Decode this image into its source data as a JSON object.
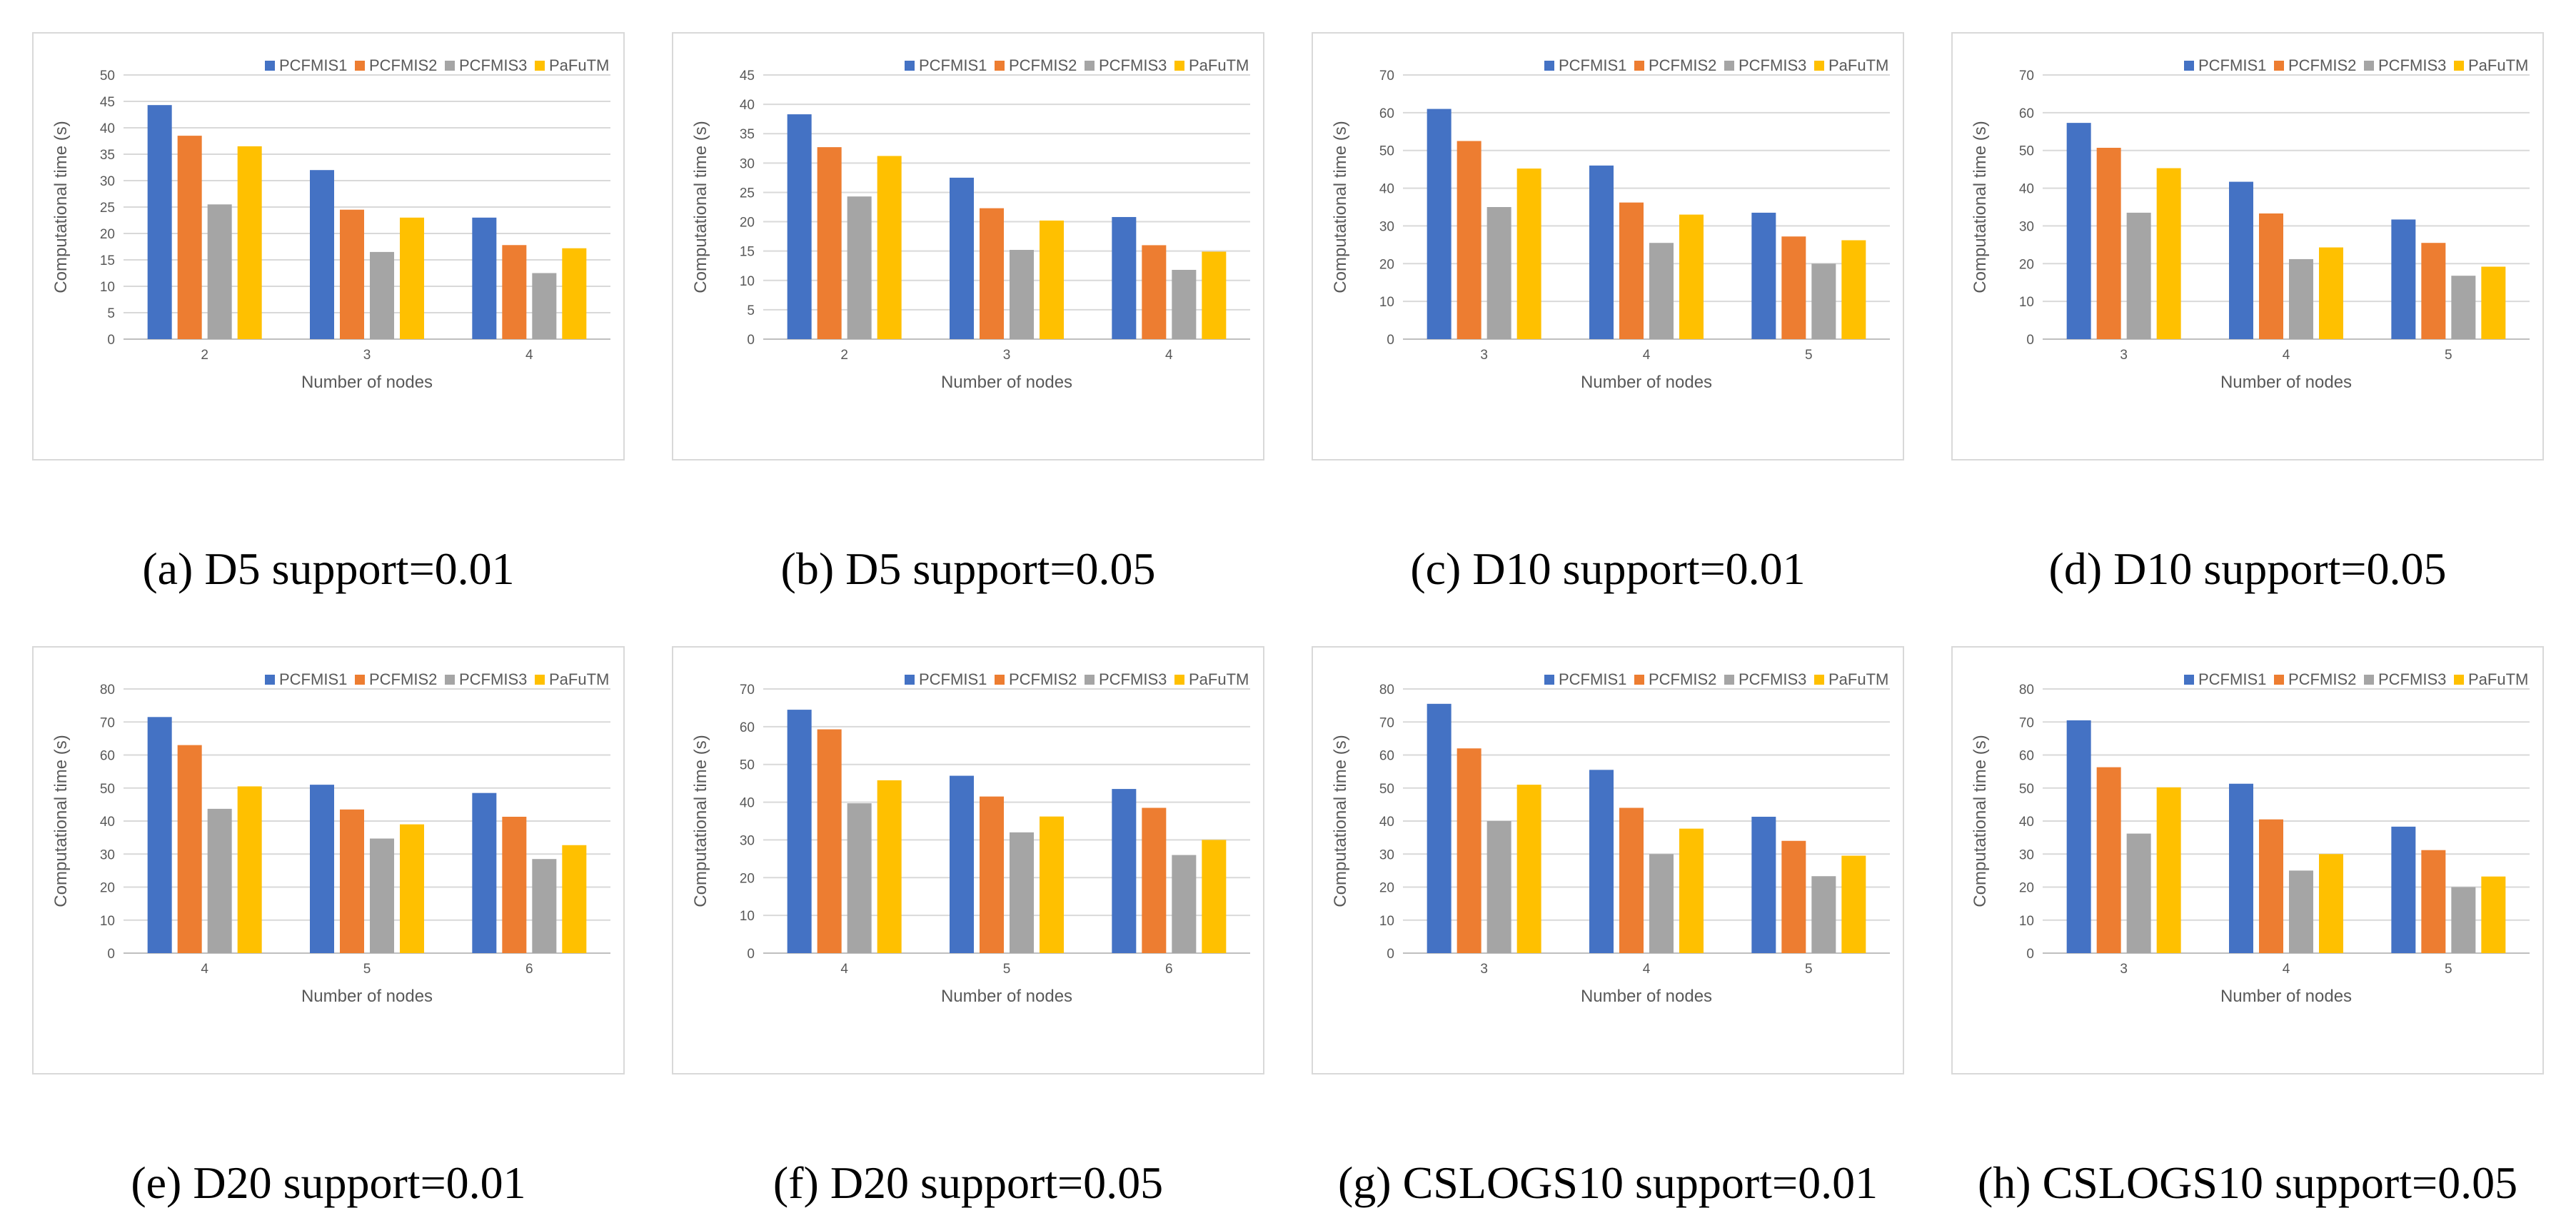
{
  "series_names": [
    "PCFMIS1",
    "PCFMIS2",
    "PCFMIS3",
    "PaFuTM"
  ],
  "series_colors": [
    "#4472c4",
    "#ed7d31",
    "#a5a5a5",
    "#ffc000"
  ],
  "charts": [
    {
      "caption": "(a) D5 support=0.01",
      "chart_data": {
        "type": "bar",
        "categories": [
          "2",
          "3",
          "4"
        ],
        "xlabel": "Number of nodes",
        "ylabel": "Computational time (s)",
        "ylim": [
          0,
          50
        ],
        "ystep": 5,
        "legend": "top-right",
        "grid": true,
        "series": [
          {
            "name": "PCFMIS1",
            "values": [
              44.3,
              32,
              23
            ]
          },
          {
            "name": "PCFMIS2",
            "values": [
              38.5,
              24.5,
              17.8
            ]
          },
          {
            "name": "PCFMIS3",
            "values": [
              25.5,
              16.5,
              12.5
            ]
          },
          {
            "name": "PaFuTM",
            "values": [
              36.5,
              23,
              17.2
            ]
          }
        ]
      }
    },
    {
      "caption": "(b) D5 support=0.05",
      "chart_data": {
        "type": "bar",
        "categories": [
          "2",
          "3",
          "4"
        ],
        "xlabel": "Number of nodes",
        "ylabel": "Computational time (s)",
        "ylim": [
          0,
          45
        ],
        "ystep": 5,
        "legend": "top-right",
        "grid": true,
        "series": [
          {
            "name": "PCFMIS1",
            "values": [
              38.3,
              27.5,
              20.8
            ]
          },
          {
            "name": "PCFMIS2",
            "values": [
              32.7,
              22.3,
              16
            ]
          },
          {
            "name": "PCFMIS3",
            "values": [
              24.3,
              15.2,
              11.8
            ]
          },
          {
            "name": "PaFuTM",
            "values": [
              31.2,
              20.2,
              14.9
            ]
          }
        ]
      }
    },
    {
      "caption": "(c) D10 support=0.01",
      "chart_data": {
        "type": "bar",
        "categories": [
          "3",
          "4",
          "5"
        ],
        "xlabel": "Number of nodes",
        "ylabel": "Computational time (s)",
        "ylim": [
          0,
          70
        ],
        "ystep": 10,
        "legend": "top-right",
        "grid": true,
        "series": [
          {
            "name": "PCFMIS1",
            "values": [
              61,
              46,
              33.5
            ]
          },
          {
            "name": "PCFMIS2",
            "values": [
              52.5,
              36.2,
              27.2
            ]
          },
          {
            "name": "PCFMIS3",
            "values": [
              35,
              25.5,
              20
            ]
          },
          {
            "name": "PaFuTM",
            "values": [
              45.2,
              33,
              26.2
            ]
          }
        ]
      }
    },
    {
      "caption": "(d) D10 support=0.05",
      "chart_data": {
        "type": "bar",
        "categories": [
          "3",
          "4",
          "5"
        ],
        "xlabel": "Number of nodes",
        "ylabel": "Computational time (s)",
        "ylim": [
          0,
          70
        ],
        "ystep": 10,
        "legend": "top-right",
        "grid": true,
        "series": [
          {
            "name": "PCFMIS1",
            "values": [
              57.3,
              41.7,
              31.7
            ]
          },
          {
            "name": "PCFMIS2",
            "values": [
              50.7,
              33.3,
              25.5
            ]
          },
          {
            "name": "PCFMIS3",
            "values": [
              33.5,
              21.2,
              16.8
            ]
          },
          {
            "name": "PaFuTM",
            "values": [
              45.3,
              24.3,
              19.2
            ]
          }
        ]
      }
    },
    {
      "caption": "(e) D20 support=0.01",
      "chart_data": {
        "type": "bar",
        "categories": [
          "4",
          "5",
          "6"
        ],
        "xlabel": "Number of nodes",
        "ylabel": "Computational time (s)",
        "ylim": [
          0,
          80
        ],
        "ystep": 10,
        "legend": "top-right",
        "grid": true,
        "series": [
          {
            "name": "PCFMIS1",
            "values": [
              71.5,
              51,
              48.5
            ]
          },
          {
            "name": "PCFMIS2",
            "values": [
              63,
              43.5,
              41.3
            ]
          },
          {
            "name": "PCFMIS3",
            "values": [
              43.7,
              34.7,
              28.5
            ]
          },
          {
            "name": "PaFuTM",
            "values": [
              50.5,
              39,
              32.7
            ]
          }
        ]
      }
    },
    {
      "caption": "(f) D20 support=0.05",
      "chart_data": {
        "type": "bar",
        "categories": [
          "4",
          "5",
          "6"
        ],
        "xlabel": "Number of nodes",
        "ylabel": "Computational time (s)",
        "ylim": [
          0,
          70
        ],
        "ystep": 10,
        "legend": "top-right",
        "grid": true,
        "series": [
          {
            "name": "PCFMIS1",
            "values": [
              64.5,
              47,
              43.5
            ]
          },
          {
            "name": "PCFMIS2",
            "values": [
              59.3,
              41.5,
              38.5
            ]
          },
          {
            "name": "PCFMIS3",
            "values": [
              39.7,
              32,
              26
            ]
          },
          {
            "name": "PaFuTM",
            "values": [
              45.8,
              36.2,
              30
            ]
          }
        ]
      }
    },
    {
      "caption": "(g) CSLOGS10 support=0.01",
      "chart_data": {
        "type": "bar",
        "categories": [
          "3",
          "4",
          "5"
        ],
        "xlabel": "Number of nodes",
        "ylabel": "Computational time (s)",
        "ylim": [
          0,
          80
        ],
        "ystep": 10,
        "legend": "top-right",
        "grid": true,
        "series": [
          {
            "name": "PCFMIS1",
            "values": [
              75.5,
              55.5,
              41.3
            ]
          },
          {
            "name": "PCFMIS2",
            "values": [
              62,
              44,
              34
            ]
          },
          {
            "name": "PCFMIS3",
            "values": [
              40,
              30,
              23.3
            ]
          },
          {
            "name": "PaFuTM",
            "values": [
              51,
              37.7,
              29.5
            ]
          }
        ]
      }
    },
    {
      "caption": "(h) CSLOGS10 support=0.05",
      "chart_data": {
        "type": "bar",
        "categories": [
          "3",
          "4",
          "5"
        ],
        "xlabel": "Number of nodes",
        "ylabel": "Computational time (s)",
        "ylim": [
          0,
          80
        ],
        "ystep": 10,
        "legend": "top-right",
        "grid": true,
        "series": [
          {
            "name": "PCFMIS1",
            "values": [
              70.5,
              51.3,
              38.3
            ]
          },
          {
            "name": "PCFMIS2",
            "values": [
              56.3,
              40.5,
              31.2
            ]
          },
          {
            "name": "PCFMIS3",
            "values": [
              36.2,
              25,
              20
            ]
          },
          {
            "name": "PaFuTM",
            "values": [
              50.2,
              30,
              23.2
            ]
          }
        ]
      }
    }
  ]
}
